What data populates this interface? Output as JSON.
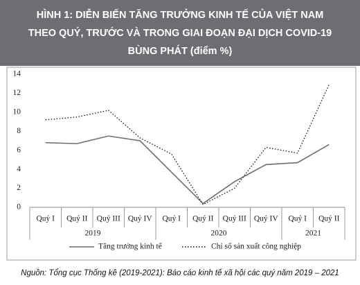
{
  "chart_data": {
    "type": "line",
    "title": [
      "HÌNH 1: DIỄN BIẾN TĂNG TRƯỞNG KINH TẾ CỦA VIỆT NAM",
      "THEO QUÝ, TRƯỚC VÀ TRONG GIAI ĐOẠN ĐẠI DỊCH COVID-19",
      "BÙNG PHÁT (điểm %)"
    ],
    "groups": [
      {
        "label": "2019",
        "categories": [
          "Quý I",
          "Quý II",
          "Quý III",
          "Quý IV"
        ]
      },
      {
        "label": "2020",
        "categories": [
          "Quý I",
          "Quý II",
          "Quý III",
          "Quý IV"
        ]
      },
      {
        "label": "2021",
        "categories": [
          "Quý I",
          "Quý II"
        ]
      }
    ],
    "series": [
      {
        "name": "Tăng trưởng kinh tế",
        "color": "#6d6d6d",
        "line_style": "solid",
        "values": [
          6.8,
          6.7,
          7.5,
          7.0,
          3.7,
          0.4,
          2.7,
          4.5,
          4.7,
          6.6
        ]
      },
      {
        "name": "Chỉ số sản xuất công nghiệp",
        "color": "#111111",
        "line_style": "dotted",
        "values": [
          9.2,
          9.5,
          10.2,
          7.3,
          5.6,
          0.3,
          2.0,
          6.3,
          5.7,
          12.9
        ]
      }
    ],
    "ylim": [
      0,
      14
    ],
    "yticks": [
      0,
      2,
      4,
      6,
      8,
      10,
      12,
      14
    ],
    "grid": false,
    "legend": "bottom",
    "source": "Nguồn: Tổng cục Thống kê (2019-2021): Báo cáo kinh tế xã hội các quý năm 2019 – 2021"
  }
}
